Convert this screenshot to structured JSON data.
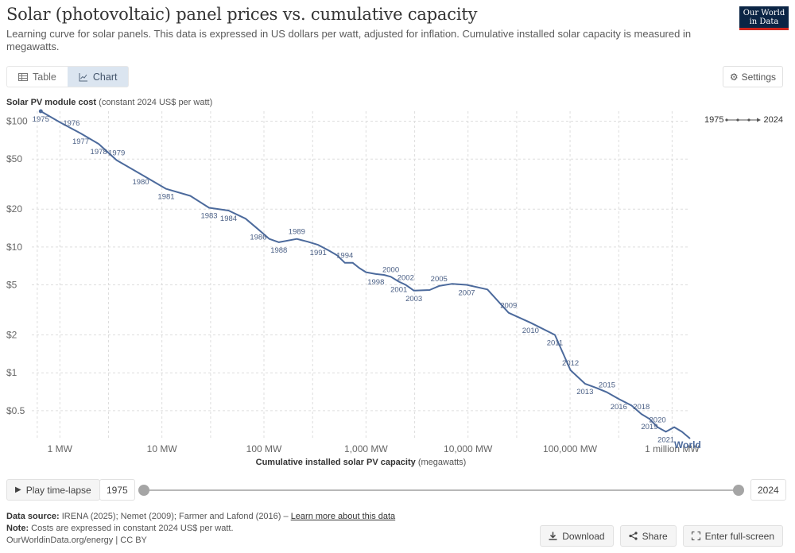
{
  "header": {
    "title": "Solar (photovoltaic) panel prices vs. cumulative capacity",
    "subtitle": "Learning curve for solar panels. This data is expressed in US dollars per watt, adjusted for inflation. Cumulative installed solar capacity is measured in megawatts.",
    "logo_line1": "Our World",
    "logo_line2": "in Data"
  },
  "tabs": {
    "table": "Table",
    "chart": "Chart"
  },
  "settings_label": "Settings",
  "legend": {
    "start": "1975",
    "end": "2024"
  },
  "timeline": {
    "play_label": "Play time-lapse",
    "start_year": "1975",
    "end_year": "2024"
  },
  "footer": {
    "source_label": "Data source:",
    "source_text": "IRENA (2025); Nemet (2009); Farmer and Lafond (2016) –",
    "learn_more": "Learn more about this data",
    "note_label": "Note:",
    "note_text": "Costs are expressed in constant 2024 US$ per watt.",
    "credit": "OurWorldinData.org/energy | CC BY"
  },
  "actions": {
    "download": "Download",
    "share": "Share",
    "fullscreen": "Enter full-screen"
  },
  "colors": {
    "line": "#4c6a9c",
    "grid": "#dddddd",
    "text": "#666666"
  },
  "chart_data": {
    "type": "line",
    "title": "Solar (photovoltaic) panel prices vs. cumulative capacity",
    "ylabel_bold": "Solar PV module cost",
    "ylabel_rest": "(constant 2024 US$ per watt)",
    "xlabel_bold": "Cumulative installed solar PV capacity",
    "xlabel_rest": "(megawatts)",
    "x_scale": "log",
    "y_scale": "log",
    "xlim": [
      0.55,
      1500000
    ],
    "ylim": [
      0.3,
      120
    ],
    "x_ticks": [
      {
        "value": 1,
        "label": "1 MW"
      },
      {
        "value": 10,
        "label": "10 MW"
      },
      {
        "value": 100,
        "label": "100 MW"
      },
      {
        "value": 1000,
        "label": "1,000 MW"
      },
      {
        "value": 10000,
        "label": "10,000 MW"
      },
      {
        "value": 100000,
        "label": "100,000 MW"
      },
      {
        "value": 1000000,
        "label": "1 million MW"
      }
    ],
    "x_minor_gridlines": [
      0.6,
      3,
      30,
      300,
      3000,
      30000,
      300000
    ],
    "y_ticks": [
      {
        "value": 100,
        "label": "$100"
      },
      {
        "value": 50,
        "label": "$50"
      },
      {
        "value": 20,
        "label": "$20"
      },
      {
        "value": 10,
        "label": "$10"
      },
      {
        "value": 5,
        "label": "$5"
      },
      {
        "value": 2,
        "label": "$2"
      },
      {
        "value": 1,
        "label": "$1"
      },
      {
        "value": 0.5,
        "label": "$0.5"
      }
    ],
    "series": [
      {
        "name": "World",
        "points": [
          {
            "year": "1975",
            "x": 0.65,
            "y": 120
          },
          {
            "year": "1976",
            "x": 1.0,
            "y": 98
          },
          {
            "year": "1977",
            "x": 1.6,
            "y": 80
          },
          {
            "year": "1978",
            "x": 2.4,
            "y": 66
          },
          {
            "year": "1979",
            "x": 3.6,
            "y": 49
          },
          {
            "year": "1980",
            "x": 6.2,
            "y": 38
          },
          {
            "year": "1981",
            "x": 11,
            "y": 29
          },
          {
            "year": "1982",
            "x": 19,
            "y": 25.5
          },
          {
            "year": "1983",
            "x": 29,
            "y": 20.5
          },
          {
            "year": "1984",
            "x": 45,
            "y": 19.5
          },
          {
            "year": "1985",
            "x": 66,
            "y": 16.8
          },
          {
            "year": "1986",
            "x": 88,
            "y": 13.8
          },
          {
            "year": "1987",
            "x": 113,
            "y": 11.6
          },
          {
            "year": "1988",
            "x": 140,
            "y": 10.9
          },
          {
            "year": "1989",
            "x": 210,
            "y": 11.6
          },
          {
            "year": "1990",
            "x": 270,
            "y": 11.0
          },
          {
            "year": "1991",
            "x": 340,
            "y": 10.4
          },
          {
            "year": "1992",
            "x": 430,
            "y": 9.4
          },
          {
            "year": "1993",
            "x": 520,
            "y": 8.6
          },
          {
            "year": "1994",
            "x": 620,
            "y": 7.5
          },
          {
            "year": "1995",
            "x": 740,
            "y": 7.5
          },
          {
            "year": "1996",
            "x": 860,
            "y": 6.8
          },
          {
            "year": "1997",
            "x": 1000,
            "y": 6.3
          },
          {
            "year": "1998",
            "x": 1250,
            "y": 6.1
          },
          {
            "year": "1999",
            "x": 1500,
            "y": 6.0
          },
          {
            "year": "2000",
            "x": 1750,
            "y": 5.8
          },
          {
            "year": "2001",
            "x": 2100,
            "y": 5.3
          },
          {
            "year": "2002",
            "x": 2450,
            "y": 5.0
          },
          {
            "year": "2003",
            "x": 2950,
            "y": 4.5
          },
          {
            "year": "2004",
            "x": 4200,
            "y": 4.55
          },
          {
            "year": "2005",
            "x": 5200,
            "y": 4.9
          },
          {
            "year": "2006",
            "x": 7000,
            "y": 5.1
          },
          {
            "year": "2007",
            "x": 9700,
            "y": 5.0
          },
          {
            "year": "2008",
            "x": 15500,
            "y": 4.6
          },
          {
            "year": "2009",
            "x": 25000,
            "y": 3.0
          },
          {
            "year": "2010",
            "x": 41000,
            "y": 2.5
          },
          {
            "year": "2011",
            "x": 71000,
            "y": 2.0
          },
          {
            "year": "2012",
            "x": 101000,
            "y": 1.05
          },
          {
            "year": "2013",
            "x": 140000,
            "y": 0.82
          },
          {
            "year": "2014",
            "x": 180000,
            "y": 0.76
          },
          {
            "year": "2015",
            "x": 230000,
            "y": 0.7
          },
          {
            "year": "2016",
            "x": 300000,
            "y": 0.62
          },
          {
            "year": "2017",
            "x": 400000,
            "y": 0.55
          },
          {
            "year": "2018",
            "x": 500000,
            "y": 0.47
          },
          {
            "year": "2019",
            "x": 600000,
            "y": 0.43
          },
          {
            "year": "2020",
            "x": 720000,
            "y": 0.37
          },
          {
            "year": "2021",
            "x": 870000,
            "y": 0.34
          },
          {
            "year": "2022",
            "x": 1050000,
            "y": 0.37
          },
          {
            "year": "2023",
            "x": 1250000,
            "y": 0.34
          },
          {
            "year": "2024",
            "x": 1500000,
            "y": 0.3
          }
        ]
      }
    ],
    "point_labels": [
      {
        "year": "1975",
        "pos": "below"
      },
      {
        "year": "1976",
        "pos": "right"
      },
      {
        "year": "1977",
        "pos": "below"
      },
      {
        "year": "1978",
        "pos": "below"
      },
      {
        "year": "1979",
        "pos": "above"
      },
      {
        "year": "1980",
        "pos": "below"
      },
      {
        "year": "1981",
        "pos": "below"
      },
      {
        "year": "1983",
        "pos": "below"
      },
      {
        "year": "1984",
        "pos": "below"
      },
      {
        "year": "1986",
        "pos": "below"
      },
      {
        "year": "1988",
        "pos": "below"
      },
      {
        "year": "1989",
        "pos": "above"
      },
      {
        "year": "1991",
        "pos": "below"
      },
      {
        "year": "1994",
        "pos": "above"
      },
      {
        "year": "1998",
        "pos": "below"
      },
      {
        "year": "2000",
        "pos": "above"
      },
      {
        "year": "2001",
        "pos": "below"
      },
      {
        "year": "2002",
        "pos": "above"
      },
      {
        "year": "2003",
        "pos": "below"
      },
      {
        "year": "2005",
        "pos": "above"
      },
      {
        "year": "2007",
        "pos": "below"
      },
      {
        "year": "2009",
        "pos": "above"
      },
      {
        "year": "2010",
        "pos": "below"
      },
      {
        "year": "2011",
        "pos": "below"
      },
      {
        "year": "2012",
        "pos": "above"
      },
      {
        "year": "2013",
        "pos": "below"
      },
      {
        "year": "2015",
        "pos": "above"
      },
      {
        "year": "2016",
        "pos": "below"
      },
      {
        "year": "2018",
        "pos": "above"
      },
      {
        "year": "2019",
        "pos": "below"
      },
      {
        "year": "2020",
        "pos": "above"
      },
      {
        "year": "2021",
        "pos": "below"
      }
    ],
    "series_label": "World"
  }
}
